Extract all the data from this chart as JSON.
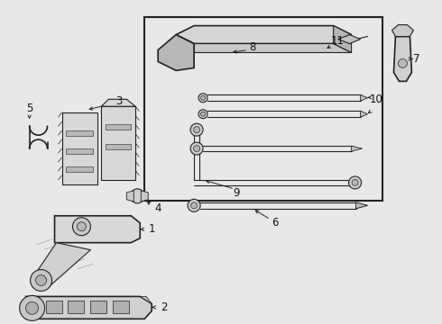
{
  "background_color": "#e8e8e8",
  "line_color": "#222222",
  "box_color": "#e8e8e8",
  "box_border": "#222222",
  "label_color": "#111111",
  "fig_width": 4.9,
  "fig_height": 3.6,
  "dpi": 100
}
